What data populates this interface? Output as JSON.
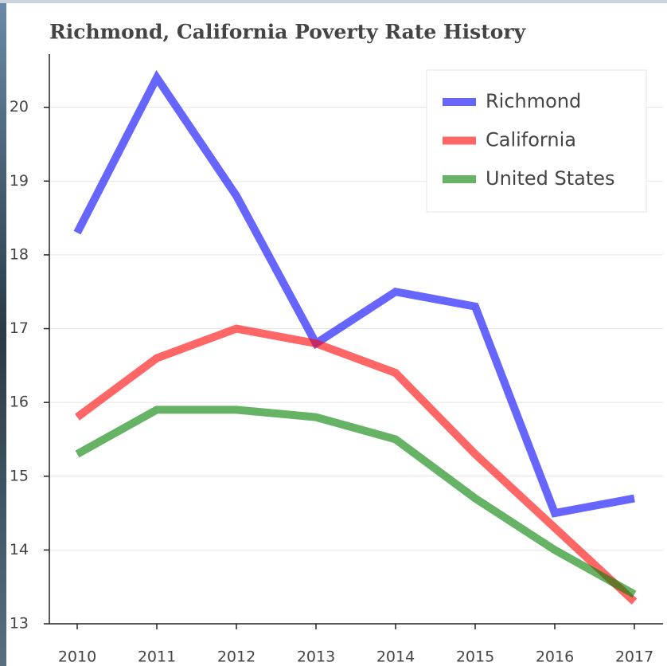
{
  "chart_data": {
    "type": "line",
    "title": "Richmond, California Poverty Rate History",
    "x": [
      2010,
      2011,
      2012,
      2013,
      2014,
      2015,
      2016,
      2017
    ],
    "series": [
      {
        "name": "Richmond",
        "color": "blue",
        "values": [
          18.3,
          20.4,
          18.8,
          16.8,
          17.5,
          17.3,
          14.5,
          14.7
        ]
      },
      {
        "name": "California",
        "color": "red",
        "values": [
          15.8,
          16.6,
          17.0,
          16.8,
          16.4,
          15.3,
          14.3,
          13.3
        ]
      },
      {
        "name": "United States",
        "color": "green",
        "values": [
          15.3,
          15.9,
          15.9,
          15.8,
          15.5,
          14.7,
          14.0,
          13.4
        ]
      }
    ],
    "xlim": [
      2009.65,
      2017.36
    ],
    "ylim": [
      13,
      20.72
    ],
    "xticks": [
      2010,
      2011,
      2012,
      2013,
      2014,
      2015,
      2016,
      2017
    ],
    "yticks": [
      13,
      14,
      15,
      16,
      17,
      18,
      19,
      20
    ],
    "grid": true,
    "legend": "top-right"
  }
}
